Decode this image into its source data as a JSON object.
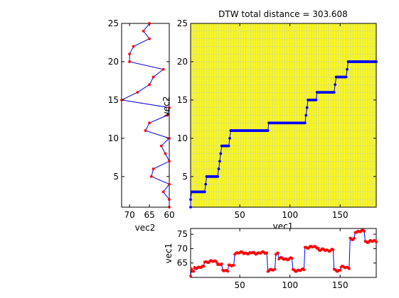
{
  "chart_data": [
    {
      "type": "line",
      "name": "vec2-panel",
      "xlabel": "vec2",
      "xdir": "reverse",
      "xlim": [
        72,
        60
      ],
      "ylim": [
        1,
        25
      ],
      "xticks": [
        70,
        65,
        60
      ],
      "yticks": [
        5,
        10,
        15,
        20,
        25
      ],
      "line_color": "#0000ff",
      "marker_color": "#ff0000",
      "y": [
        1,
        2,
        3,
        4,
        5,
        6,
        7,
        8,
        9,
        10,
        11,
        12,
        13,
        14,
        15,
        16,
        17,
        18,
        19,
        20,
        21,
        22,
        23,
        24,
        25
      ],
      "values": [
        60,
        60,
        61.5,
        60,
        64.5,
        64,
        60,
        61,
        62,
        60,
        66,
        65,
        60.5,
        60,
        72,
        68,
        65,
        64,
        61.5,
        70,
        70,
        69,
        65,
        66.5,
        65
      ]
    },
    {
      "type": "line",
      "name": "warping-path",
      "title": "DTW total distance = 303.608",
      "xlabel": "vec1",
      "ylabel": "vec2",
      "xlim": [
        1,
        186
      ],
      "ylim": [
        1,
        25
      ],
      "xticks": [
        50,
        100,
        150
      ],
      "yticks": [
        5,
        10,
        15,
        20,
        25
      ],
      "background": "#ffff00",
      "grid": true,
      "grid_color": "#c8c8c8",
      "line_color": "#0000ff",
      "marker_color": "#0000ff",
      "path_breaks": [
        [
          1,
          1
        ],
        [
          1,
          2
        ],
        [
          2,
          3
        ],
        [
          15,
          3
        ],
        [
          16,
          4
        ],
        [
          17,
          5
        ],
        [
          28,
          5
        ],
        [
          29,
          6
        ],
        [
          30,
          7
        ],
        [
          31,
          8
        ],
        [
          32,
          9
        ],
        [
          39,
          9
        ],
        [
          40,
          10
        ],
        [
          41,
          11
        ],
        [
          78,
          11
        ],
        [
          79,
          12
        ],
        [
          115,
          12
        ],
        [
          116,
          13
        ],
        [
          117,
          14
        ],
        [
          118,
          15
        ],
        [
          126,
          15
        ],
        [
          127,
          16
        ],
        [
          144,
          16
        ],
        [
          145,
          17
        ],
        [
          146,
          18
        ],
        [
          156,
          18
        ],
        [
          157,
          19
        ],
        [
          158,
          20
        ],
        [
          186,
          20
        ]
      ]
    },
    {
      "type": "line",
      "name": "vec1-panel",
      "ylabel": "vec1",
      "xlim": [
        1,
        186
      ],
      "ylim": [
        60,
        77
      ],
      "xticks": [
        50,
        100,
        150
      ],
      "yticks": [
        65,
        70,
        75
      ],
      "line_color": "#0000ff",
      "marker_color": "#ff0000",
      "segments": [
        {
          "x0": 1,
          "x1": 4,
          "y0": 60.5,
          "y1": 63.5
        },
        {
          "x0": 5,
          "x1": 14,
          "y0": 63,
          "y1": 64
        },
        {
          "x0": 15,
          "x1": 27,
          "y0": 65,
          "y1": 66
        },
        {
          "x0": 28,
          "x1": 32,
          "y0": 64,
          "y1": 65
        },
        {
          "x0": 33,
          "x1": 38,
          "y0": 62,
          "y1": 63
        },
        {
          "x0": 39,
          "x1": 44,
          "y0": 63.5,
          "y1": 64.5
        },
        {
          "x0": 45,
          "x1": 60,
          "y0": 68,
          "y1": 69
        },
        {
          "x0": 61,
          "x1": 77,
          "y0": 68,
          "y1": 69
        },
        {
          "x0": 78,
          "x1": 85,
          "y0": 62,
          "y1": 63
        },
        {
          "x0": 86,
          "x1": 88,
          "y0": 68,
          "y1": 69
        },
        {
          "x0": 89,
          "x1": 102,
          "y0": 66,
          "y1": 67
        },
        {
          "x0": 103,
          "x1": 114,
          "y0": 62,
          "y1": 63
        },
        {
          "x0": 115,
          "x1": 128,
          "y0": 70,
          "y1": 71
        },
        {
          "x0": 129,
          "x1": 143,
          "y0": 69,
          "y1": 70
        },
        {
          "x0": 144,
          "x1": 150,
          "y0": 62,
          "y1": 63
        },
        {
          "x0": 151,
          "x1": 159,
          "y0": 63,
          "y1": 64
        },
        {
          "x0": 160,
          "x1": 164,
          "y0": 72,
          "y1": 74
        },
        {
          "x0": 165,
          "x1": 174,
          "y0": 75.5,
          "y1": 76.5
        },
        {
          "x0": 175,
          "x1": 186,
          "y0": 72,
          "y1": 73
        }
      ]
    }
  ]
}
